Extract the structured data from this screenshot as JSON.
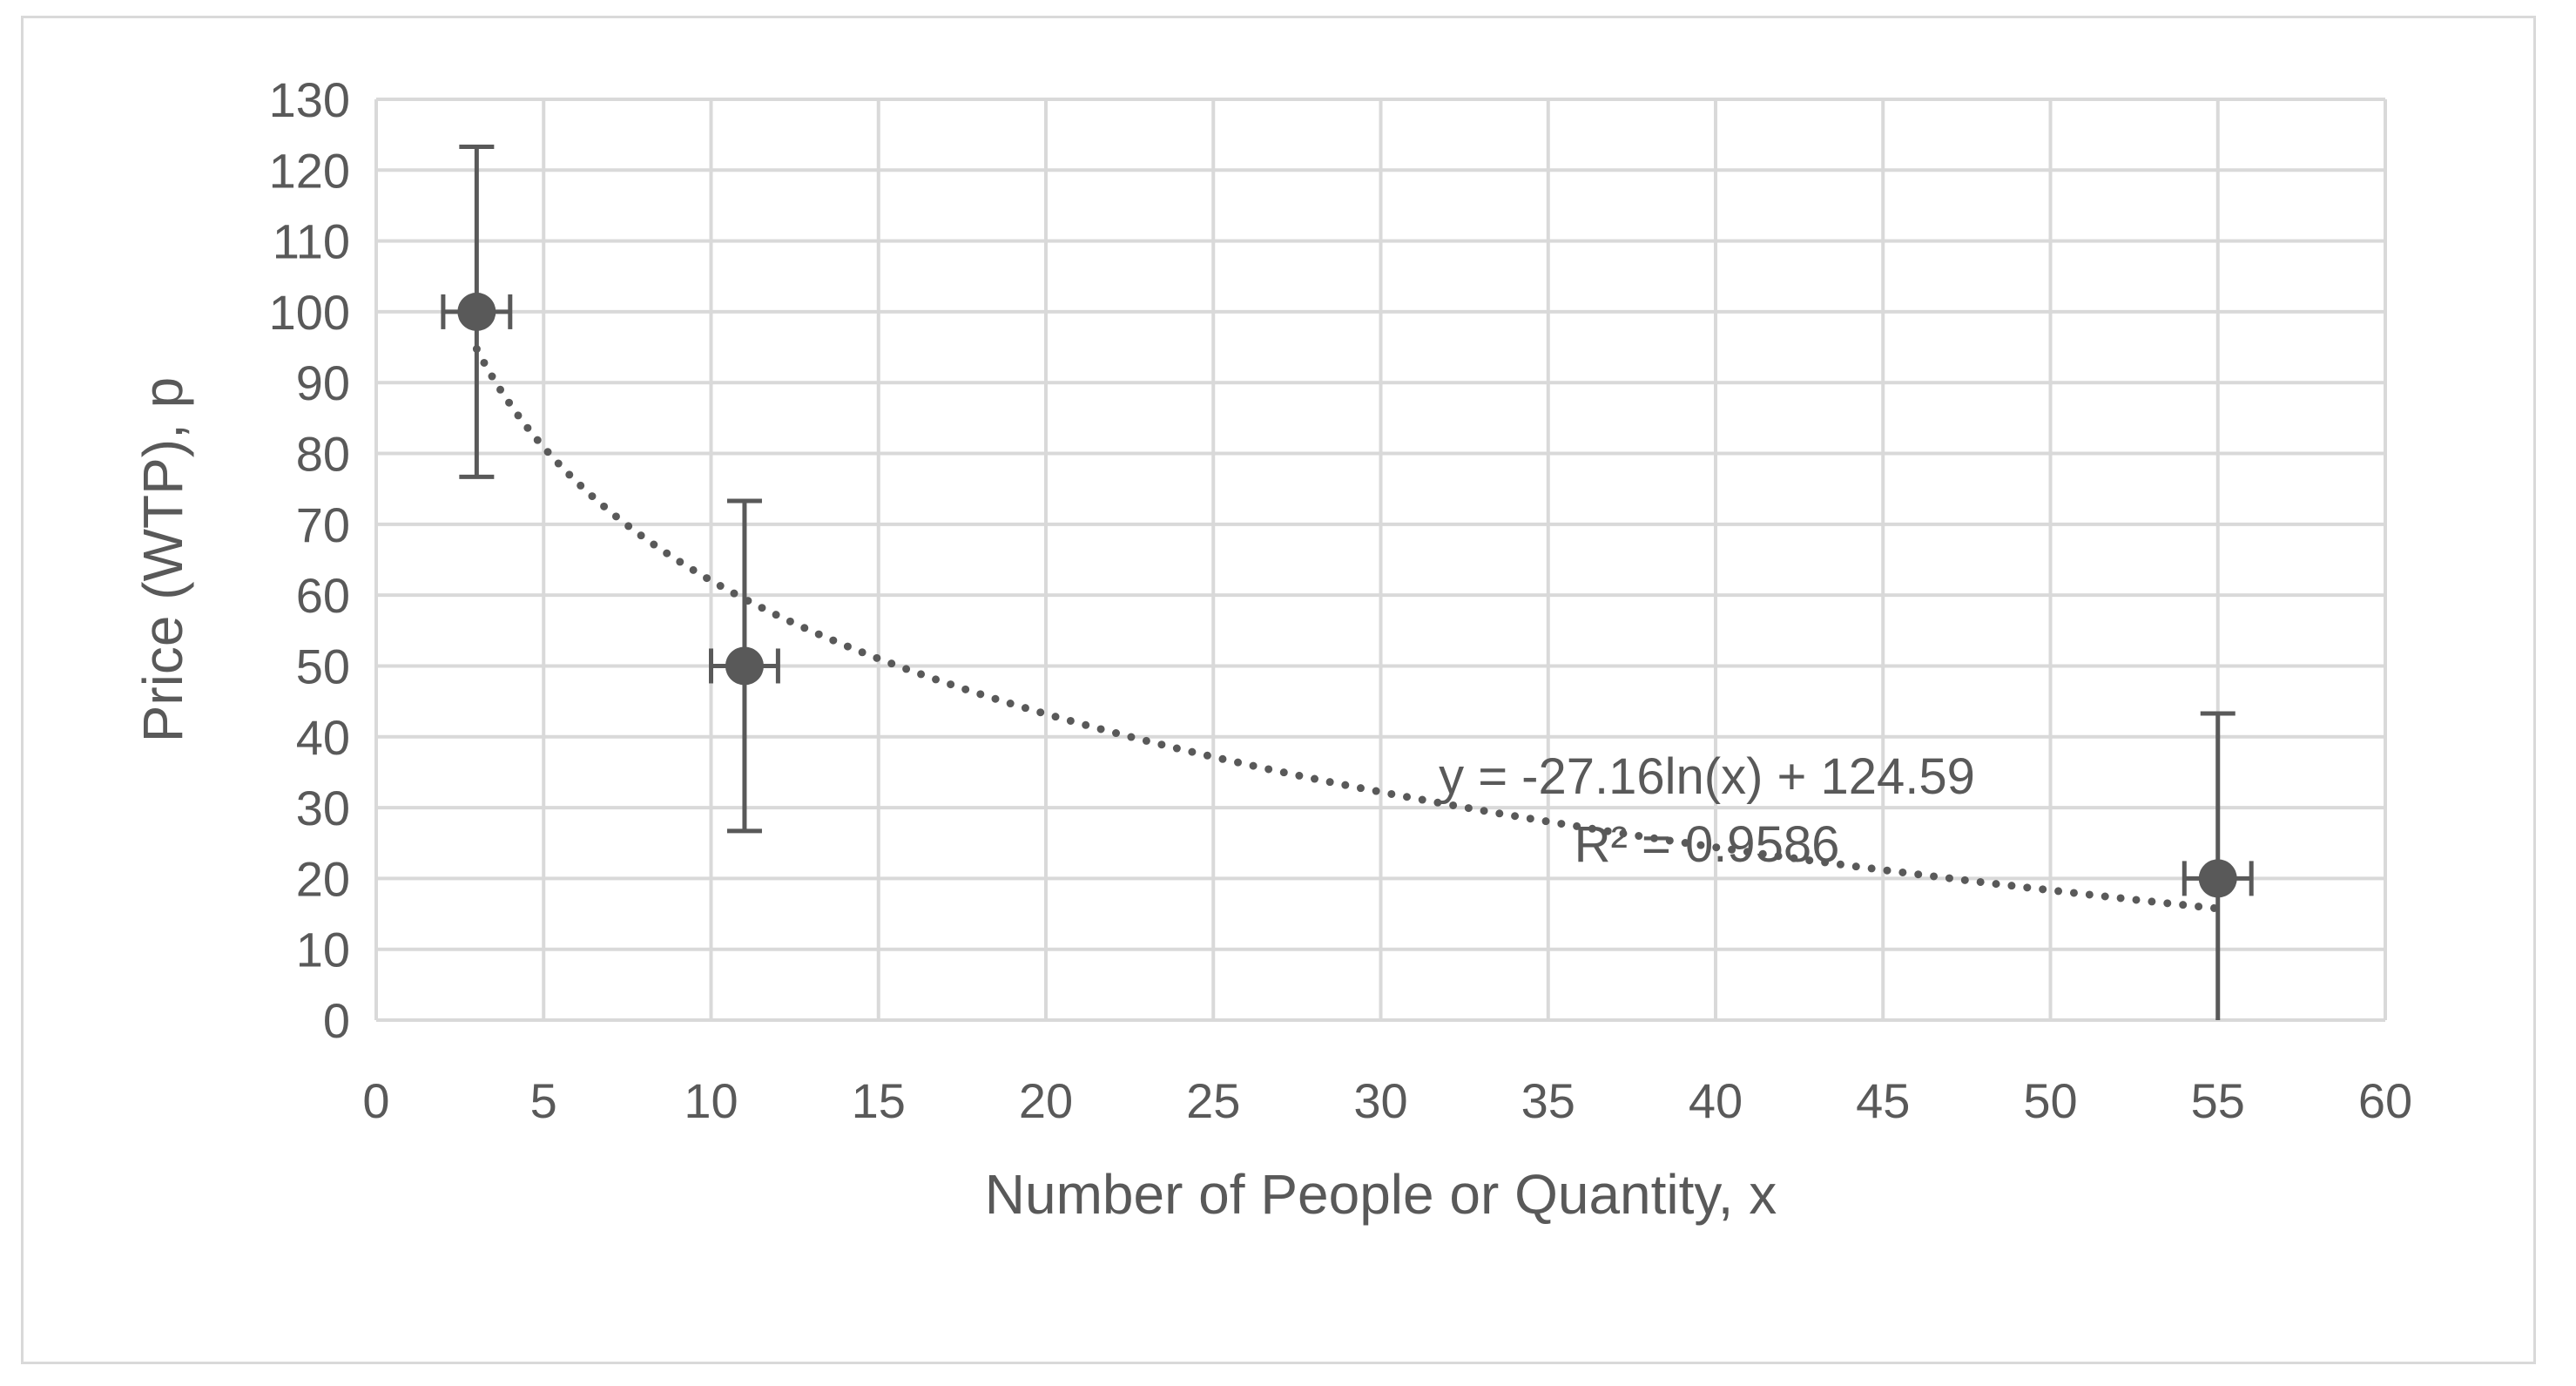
{
  "chart_data": {
    "type": "scatter",
    "xlabel": "Number of People or Quantity, x",
    "ylabel": "Price (WTP), p",
    "xlim": [
      0,
      60
    ],
    "ylim": [
      0,
      130
    ],
    "x_ticks": [
      0,
      5,
      10,
      15,
      20,
      25,
      30,
      35,
      40,
      45,
      50,
      55,
      60
    ],
    "y_ticks": [
      0,
      10,
      20,
      30,
      40,
      50,
      60,
      70,
      80,
      90,
      100,
      110,
      120,
      130
    ],
    "grid": true,
    "legend": "none",
    "series": [
      {
        "points": [
          {
            "x": 3,
            "y": 100,
            "y_err_low": 23.3,
            "y_err_high": 23.3,
            "x_err_low": 1,
            "x_err_high": 1
          },
          {
            "x": 11,
            "y": 50,
            "y_err_low": 23.3,
            "y_err_high": 23.3,
            "x_err_low": 1,
            "x_err_high": 1
          },
          {
            "x": 55,
            "y": 20,
            "y_err_low": 23.3,
            "y_err_high": 23.3,
            "x_err_low": 1,
            "x_err_high": 1
          }
        ]
      }
    ],
    "trendline": {
      "type": "logarithmic",
      "a": -27.16,
      "b": 124.59,
      "x_range": [
        3,
        55
      ],
      "equation_label": "y = -27.16ln(x) + 124.59",
      "r2_label": "R² = 0.9586"
    },
    "colors": {
      "marker": "#595959",
      "error_bar": "#595959",
      "trendline": "#595959",
      "grid": "#d9d9d9",
      "text": "#595959"
    }
  }
}
